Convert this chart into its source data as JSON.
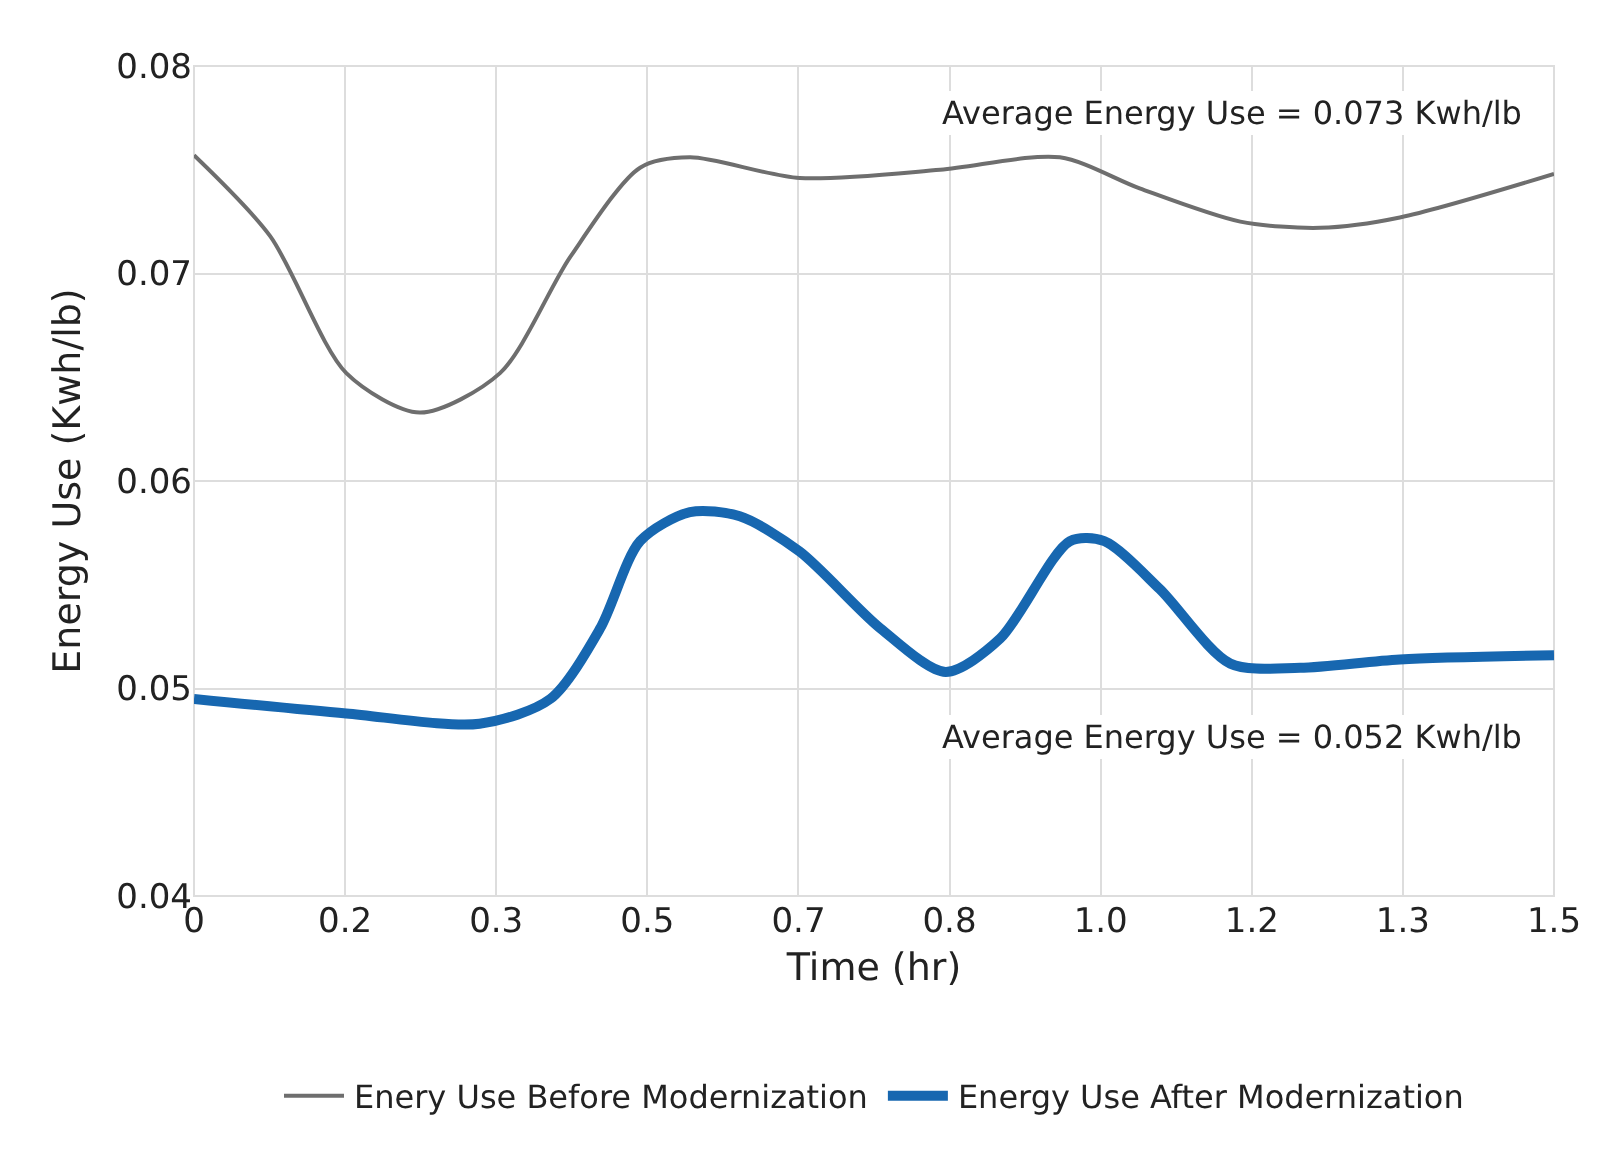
{
  "chart_data": {
    "type": "line",
    "xlabel": "Time (hr)",
    "ylabel": "Energy Use (Kwh/lb)",
    "series": [
      {
        "name": "Enery Use Before Modernization",
        "color": "#6e6e6e",
        "x": [
          0,
          0.084,
          0.168,
          0.249,
          0.3375,
          0.415,
          0.492,
          0.547,
          0.668,
          0.823,
          0.955,
          1.043,
          1.154,
          1.242,
          1.33,
          1.5
        ],
        "values": [
          0.0757,
          0.0718,
          0.0652,
          0.0633,
          0.0652,
          0.0708,
          0.0751,
          0.0756,
          0.0746,
          0.075,
          0.0756,
          0.0741,
          0.0725,
          0.0722,
          0.0727,
          0.0748
        ]
      },
      {
        "name": "Energy Use After Modernization",
        "color": "#1767b0",
        "x": [
          0,
          0.168,
          0.315,
          0.393,
          0.448,
          0.492,
          0.547,
          0.602,
          0.668,
          0.757,
          0.829,
          0.889,
          0.966,
          1.004,
          1.065,
          1.143,
          1.22,
          1.33,
          1.5
        ],
        "values": [
          0.0495,
          0.0488,
          0.0483,
          0.0495,
          0.0529,
          0.0571,
          0.0585,
          0.0583,
          0.0566,
          0.0529,
          0.0508,
          0.0524,
          0.0571,
          0.0571,
          0.0548,
          0.0512,
          0.051,
          0.0514,
          0.0516
        ]
      }
    ],
    "xlim": [
      0,
      1.5
    ],
    "xticks": [
      0,
      {
        "value": 0.1667,
        "label": "0.2"
      },
      {
        "value": 0.3333,
        "label": "0.3"
      },
      0.5,
      {
        "value": 0.6667,
        "label": "0.7"
      },
      {
        "value": 0.8333,
        "label": "0.8"
      },
      {
        "value": 1.0,
        "label": "1.0"
      },
      {
        "value": 1.1667,
        "label": "1.2"
      },
      {
        "value": 1.3333,
        "label": "1.3"
      },
      1.5
    ],
    "ylim": [
      0.04,
      0.08
    ],
    "yticks": [
      0.04,
      0.05,
      0.06,
      0.07,
      0.08
    ],
    "annotations": [
      "Average Energy Use = 0.073 Kwh/lb",
      "Average Energy Use = 0.052 Kwh/lb"
    ],
    "grid": true,
    "legend": "bottom",
    "marker": "none",
    "line_style": "solid"
  }
}
